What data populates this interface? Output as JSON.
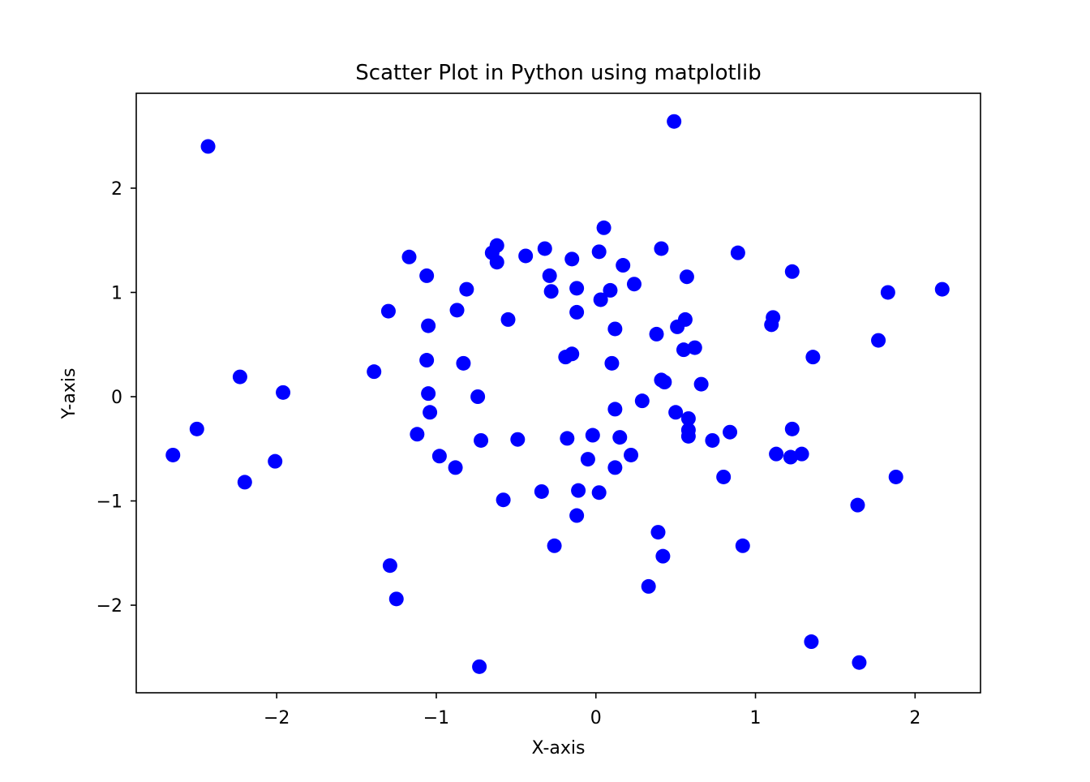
{
  "chart_data": {
    "type": "scatter",
    "title": "Scatter Plot in Python using matplotlib",
    "xlabel": "X-axis",
    "ylabel": "Y-axis",
    "xlim": [
      -2.88,
      2.41
    ],
    "ylim": [
      -2.84,
      2.91
    ],
    "grid": false,
    "legend": "none",
    "marker_color": "#0000ff",
    "x_ticks": [
      {
        "value": -2,
        "label": "−2"
      },
      {
        "value": -1,
        "label": "−1"
      },
      {
        "value": 0,
        "label": "0"
      },
      {
        "value": 1,
        "label": "1"
      },
      {
        "value": 2,
        "label": "2"
      }
    ],
    "y_ticks": [
      {
        "value": -2,
        "label": "−2"
      },
      {
        "value": -1,
        "label": "−1"
      },
      {
        "value": 0,
        "label": "0"
      },
      {
        "value": 1,
        "label": "1"
      },
      {
        "value": 2,
        "label": "2"
      }
    ],
    "series": [
      {
        "points": [
          [
            0.49,
            2.64
          ],
          [
            -2.43,
            2.4
          ],
          [
            0.05,
            1.62
          ],
          [
            -0.62,
            1.45
          ],
          [
            -0.32,
            1.42
          ],
          [
            0.41,
            1.42
          ],
          [
            -0.65,
            1.38
          ],
          [
            0.02,
            1.39
          ],
          [
            0.89,
            1.38
          ],
          [
            -1.17,
            1.34
          ],
          [
            -0.44,
            1.35
          ],
          [
            -0.15,
            1.32
          ],
          [
            -0.62,
            1.29
          ],
          [
            0.17,
            1.26
          ],
          [
            -0.29,
            1.16
          ],
          [
            1.23,
            1.2
          ],
          [
            -1.06,
            1.16
          ],
          [
            0.57,
            1.15
          ],
          [
            0.24,
            1.08
          ],
          [
            -0.12,
            1.04
          ],
          [
            -0.81,
            1.03
          ],
          [
            0.09,
            1.02
          ],
          [
            -0.28,
            1.01
          ],
          [
            2.17,
            1.03
          ],
          [
            1.83,
            1.0
          ],
          [
            0.03,
            0.93
          ],
          [
            -1.3,
            0.82
          ],
          [
            -0.87,
            0.83
          ],
          [
            -0.12,
            0.81
          ],
          [
            0.56,
            0.74
          ],
          [
            -0.55,
            0.74
          ],
          [
            1.11,
            0.76
          ],
          [
            1.1,
            0.69
          ],
          [
            -1.05,
            0.68
          ],
          [
            0.51,
            0.67
          ],
          [
            0.12,
            0.65
          ],
          [
            0.38,
            0.6
          ],
          [
            1.77,
            0.54
          ],
          [
            0.62,
            0.47
          ],
          [
            0.55,
            0.45
          ],
          [
            -0.15,
            0.41
          ],
          [
            -0.19,
            0.38
          ],
          [
            1.36,
            0.38
          ],
          [
            -1.06,
            0.35
          ],
          [
            -0.83,
            0.32
          ],
          [
            0.1,
            0.32
          ],
          [
            -1.39,
            0.24
          ],
          [
            -2.23,
            0.19
          ],
          [
            0.41,
            0.16
          ],
          [
            0.43,
            0.14
          ],
          [
            0.66,
            0.12
          ],
          [
            -1.96,
            0.04
          ],
          [
            -1.05,
            0.03
          ],
          [
            -0.74,
            0.0
          ],
          [
            0.29,
            -0.04
          ],
          [
            0.12,
            -0.12
          ],
          [
            -1.04,
            -0.15
          ],
          [
            0.5,
            -0.15
          ],
          [
            0.58,
            -0.21
          ],
          [
            -2.5,
            -0.31
          ],
          [
            1.23,
            -0.31
          ],
          [
            0.58,
            -0.32
          ],
          [
            0.84,
            -0.34
          ],
          [
            -1.12,
            -0.36
          ],
          [
            -0.02,
            -0.37
          ],
          [
            0.58,
            -0.38
          ],
          [
            0.15,
            -0.39
          ],
          [
            -0.72,
            -0.42
          ],
          [
            -0.49,
            -0.41
          ],
          [
            -0.18,
            -0.4
          ],
          [
            0.73,
            -0.42
          ],
          [
            -2.65,
            -0.56
          ],
          [
            1.13,
            -0.55
          ],
          [
            1.29,
            -0.55
          ],
          [
            0.22,
            -0.56
          ],
          [
            -0.98,
            -0.57
          ],
          [
            1.22,
            -0.58
          ],
          [
            -0.05,
            -0.6
          ],
          [
            -2.01,
            -0.62
          ],
          [
            -0.88,
            -0.68
          ],
          [
            0.12,
            -0.68
          ],
          [
            0.8,
            -0.77
          ],
          [
            1.88,
            -0.77
          ],
          [
            -2.2,
            -0.82
          ],
          [
            -0.34,
            -0.91
          ],
          [
            -0.11,
            -0.9
          ],
          [
            0.02,
            -0.92
          ],
          [
            -0.58,
            -0.99
          ],
          [
            1.64,
            -1.04
          ],
          [
            -0.12,
            -1.14
          ],
          [
            0.39,
            -1.3
          ],
          [
            0.92,
            -1.43
          ],
          [
            -0.26,
            -1.43
          ],
          [
            0.42,
            -1.53
          ],
          [
            -1.29,
            -1.62
          ],
          [
            0.33,
            -1.82
          ],
          [
            -1.25,
            -1.94
          ],
          [
            1.35,
            -2.35
          ],
          [
            1.65,
            -2.55
          ],
          [
            -0.73,
            -2.59
          ]
        ]
      }
    ]
  }
}
